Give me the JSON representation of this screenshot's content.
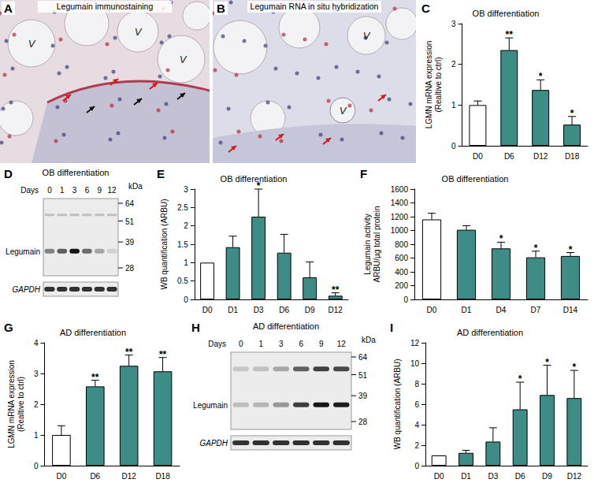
{
  "images": [
    {
      "panel": "A",
      "title": "Legumain immunostaining",
      "labels": [
        "V",
        "V",
        "V"
      ]
    },
    {
      "panel": "B",
      "title": "Legumain RNA  in situ hybridization",
      "labels": [
        "V",
        "V"
      ]
    }
  ],
  "blots": [
    {
      "panel": "D",
      "title": "OB differentiation",
      "x_label": "Days",
      "lanes": [
        "0",
        "1",
        "3",
        "6",
        "9",
        "12"
      ],
      "unit": "kDa",
      "markers": [
        64,
        51,
        39,
        28
      ],
      "rows": [
        "Legumain",
        "GAPDH"
      ]
    },
    {
      "panel": "H",
      "title": "AD differentiation",
      "x_label": "Days",
      "lanes": [
        "0",
        "1",
        "3",
        "6",
        "9",
        "12"
      ],
      "unit": "kDa",
      "markers": [
        64,
        51,
        39,
        28
      ],
      "rows": [
        "Legumain",
        "GAPDH"
      ]
    }
  ],
  "chart_data": [
    {
      "panel": "C",
      "type": "bar",
      "title": "OB differentiation",
      "ylabel": "LGMN mRNA expression\n(Realtive to ctrl)",
      "categories": [
        "D0",
        "D6",
        "D12",
        "D18"
      ],
      "values": [
        1.0,
        2.35,
        1.37,
        0.52
      ],
      "errors": [
        0.1,
        0.3,
        0.25,
        0.2
      ],
      "significance": [
        null,
        "**",
        "*",
        "*"
      ],
      "colors": [
        "#ffffff",
        "#3d8c85",
        "#3d8c85",
        "#3d8c85"
      ],
      "ylim": [
        0,
        3
      ],
      "yticks": [
        0,
        1,
        2,
        3
      ],
      "grid": false
    },
    {
      "panel": "E",
      "type": "bar",
      "title": "OB differentiation",
      "ylabel": "WB quantification (ARBU)",
      "categories": [
        "D0",
        "D1",
        "D3",
        "D6",
        "D9",
        "D12"
      ],
      "values": [
        1.0,
        1.42,
        2.25,
        1.27,
        0.6,
        0.1
      ],
      "errors": [
        0,
        0.3,
        0.75,
        0.5,
        0.42,
        0.08
      ],
      "significance": [
        null,
        null,
        "*",
        null,
        null,
        "**"
      ],
      "colors": [
        "#ffffff",
        "#3d8c85",
        "#3d8c85",
        "#3d8c85",
        "#3d8c85",
        "#3d8c85"
      ],
      "ylim": [
        0,
        3
      ],
      "yticks": [
        0,
        0.5,
        1,
        1.5,
        2,
        2.5,
        3
      ],
      "grid": false
    },
    {
      "panel": "F",
      "type": "bar",
      "title": "OB differentiation",
      "ylabel": "Legumain activity\nARBU/µg total protein",
      "categories": [
        "D0",
        "D1",
        "D4",
        "D7",
        "D14"
      ],
      "values": [
        1160,
        1010,
        740,
        610,
        630
      ],
      "errors": [
        90,
        60,
        90,
        90,
        50
      ],
      "significance": [
        null,
        null,
        "*",
        "*",
        "*"
      ],
      "colors": [
        "#ffffff",
        "#3d8c85",
        "#3d8c85",
        "#3d8c85",
        "#3d8c85"
      ],
      "ylim": [
        0,
        1600
      ],
      "yticks": [
        0,
        200,
        400,
        600,
        800,
        1000,
        1200,
        1400,
        1600
      ],
      "grid": false
    },
    {
      "panel": "G",
      "type": "bar",
      "title": "AD differentiation",
      "ylabel": "LGMN mRNA expression\n(Realtive to ctrl)",
      "categories": [
        "D0",
        "D6",
        "D12",
        "D18"
      ],
      "values": [
        1.0,
        2.58,
        3.25,
        3.07
      ],
      "errors": [
        0.3,
        0.2,
        0.35,
        0.45
      ],
      "significance": [
        null,
        "**",
        "**",
        "**"
      ],
      "colors": [
        "#ffffff",
        "#3d8c85",
        "#3d8c85",
        "#3d8c85"
      ],
      "ylim": [
        0,
        4
      ],
      "yticks": [
        0,
        1,
        2,
        3,
        4
      ],
      "grid": false
    },
    {
      "panel": "I",
      "type": "bar",
      "title": "AD differentiation",
      "ylabel": "WB quantification (ARBU)",
      "categories": [
        "D0",
        "D1",
        "D3",
        "D6",
        "D9",
        "D12"
      ],
      "values": [
        1.0,
        1.25,
        2.35,
        5.5,
        6.9,
        6.6
      ],
      "errors": [
        0,
        0.25,
        1.35,
        2.65,
        2.9,
        2.7
      ],
      "significance": [
        null,
        null,
        null,
        "*",
        "*",
        "*"
      ],
      "colors": [
        "#ffffff",
        "#3d8c85",
        "#3d8c85",
        "#3d8c85",
        "#3d8c85",
        "#3d8c85"
      ],
      "ylim": [
        0,
        12
      ],
      "yticks": [
        0,
        2,
        4,
        6,
        8,
        10,
        12
      ],
      "grid": false
    }
  ]
}
